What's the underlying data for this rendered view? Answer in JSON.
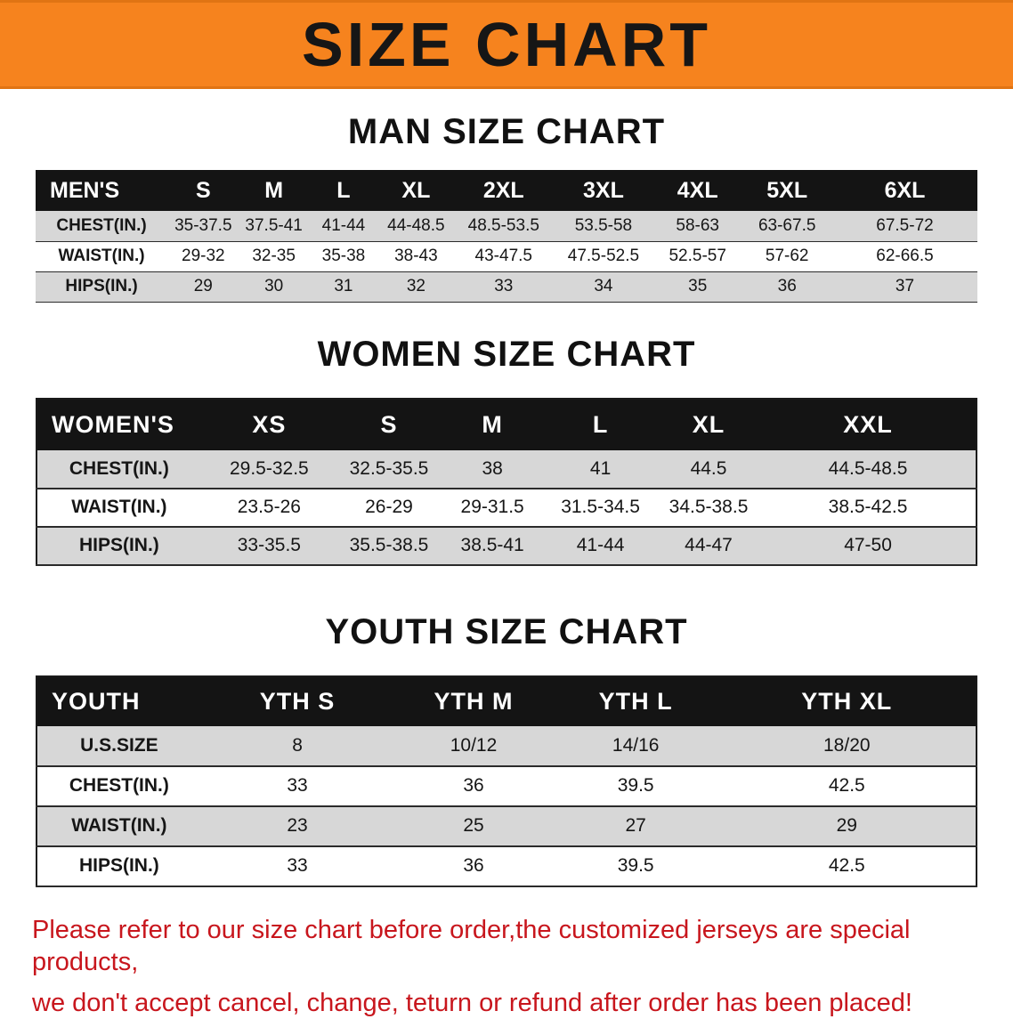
{
  "colors": {
    "banner_orange": "#f6831e",
    "title_black": "#161616",
    "header_black": "#141414",
    "row_shade": "#d7d7d7",
    "disclaimer_red": "#c8161d"
  },
  "banner": {
    "title": "SIZE CHART"
  },
  "sections": [
    {
      "id": "men",
      "heading": "MAN SIZE CHART",
      "table": {
        "header": [
          "MEN'S",
          "S",
          "M",
          "L",
          "XL",
          "2XL",
          "3XL",
          "4XL",
          "5XL",
          "6XL"
        ],
        "rows": [
          [
            "CHEST(IN.)",
            "35-37.5",
            "37.5-41",
            "41-44",
            "44-48.5",
            "48.5-53.5",
            "53.5-58",
            "58-63",
            "63-67.5",
            "67.5-72"
          ],
          [
            "WAIST(IN.)",
            "29-32",
            "32-35",
            "35-38",
            "38-43",
            "43-47.5",
            "47.5-52.5",
            "52.5-57",
            "57-62",
            "62-66.5"
          ],
          [
            "HIPS(IN.)",
            "29",
            "30",
            "31",
            "32",
            "33",
            "34",
            "35",
            "36",
            "37"
          ]
        ]
      }
    },
    {
      "id": "women",
      "heading": "WOMEN SIZE CHART",
      "table": {
        "header": [
          "WOMEN'S",
          "XS",
          "S",
          "M",
          "L",
          "XL",
          "XXL"
        ],
        "rows": [
          [
            "CHEST(IN.)",
            "29.5-32.5",
            "32.5-35.5",
            "38",
            "41",
            "44.5",
            "44.5-48.5"
          ],
          [
            "WAIST(IN.)",
            "23.5-26",
            "26-29",
            "29-31.5",
            "31.5-34.5",
            "34.5-38.5",
            "38.5-42.5"
          ],
          [
            "HIPS(IN.)",
            "33-35.5",
            "35.5-38.5",
            "38.5-41",
            "41-44",
            "44-47",
            "47-50"
          ]
        ]
      }
    },
    {
      "id": "youth",
      "heading": "YOUTH SIZE CHART",
      "table": {
        "header": [
          "YOUTH",
          "YTH S",
          "YTH M",
          "YTH L",
          "YTH XL"
        ],
        "rows": [
          [
            "U.S.SIZE",
            "8",
            "10/12",
            "14/16",
            "18/20"
          ],
          [
            "CHEST(IN.)",
            "33",
            "36",
            "39.5",
            "42.5"
          ],
          [
            "WAIST(IN.)",
            "23",
            "25",
            "27",
            "29"
          ],
          [
            "HIPS(IN.)",
            "33",
            "36",
            "39.5",
            "42.5"
          ]
        ]
      }
    }
  ],
  "footer": {
    "lines": [
      "Please refer to our size chart before order,the customized jerseys are special products,",
      "we don't accept cancel, change, teturn or refund after order has been placed!"
    ]
  }
}
